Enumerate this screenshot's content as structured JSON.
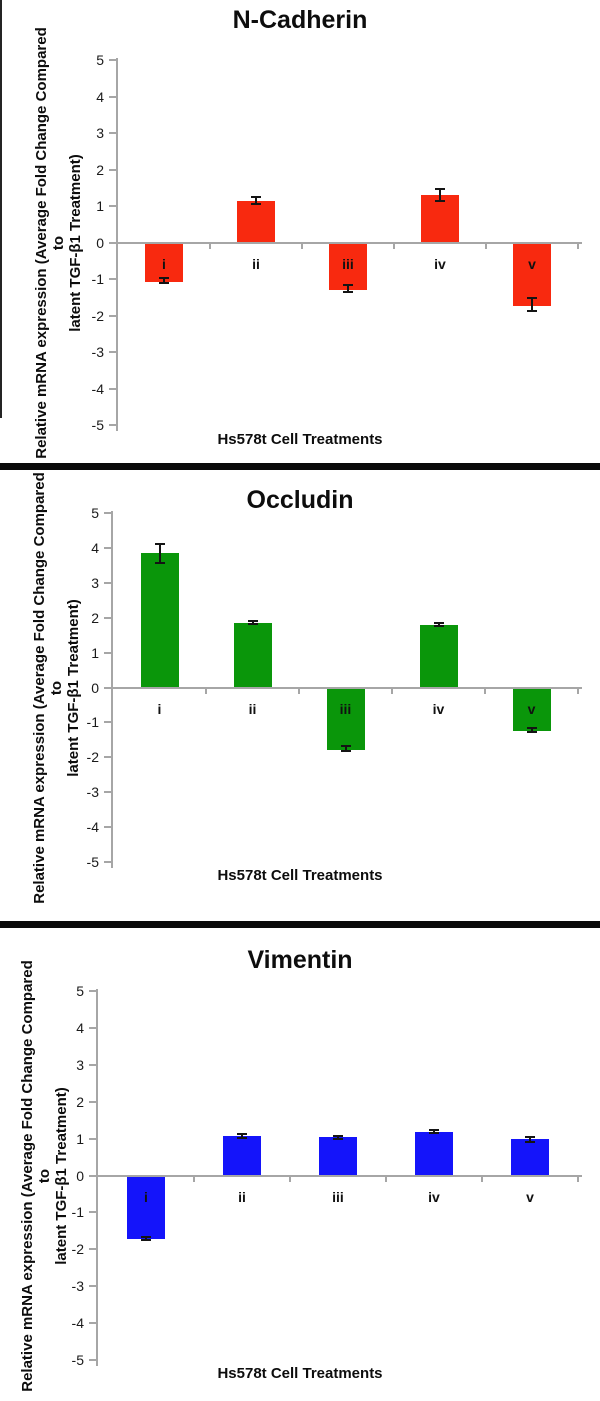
{
  "colors": {
    "axis": "#a6a6a6",
    "error_bar": "#141414",
    "separator": "#0a0a0a",
    "background": "#ffffff",
    "text": "#0d0d0d"
  },
  "chart_data": [
    {
      "type": "bar",
      "title": "N-Cadherin",
      "bar_color": "#f8290f",
      "categories": [
        "i",
        "ii",
        "iii",
        "iv",
        "v"
      ],
      "values": [
        -1.05,
        1.15,
        -1.27,
        1.3,
        -1.7
      ],
      "errors": [
        0.1,
        0.13,
        0.12,
        0.18,
        0.2
      ],
      "xlabel": "Hs578t Cell Treatments",
      "ylabel": "Relative mRNA expression (Average Fold Change  Compared to latent TGF-β1 Treatment)",
      "ylabel_lines": [
        "Relative mRNA expression (Average Fold Change  Compared to",
        "latent TGF-β1 Treatment)"
      ],
      "ylim": [
        -5,
        5
      ],
      "yticks": [
        5,
        4,
        3,
        2,
        1,
        0,
        -1,
        -2,
        -3,
        -4,
        -5
      ],
      "grid": false,
      "legend": "none"
    },
    {
      "type": "bar",
      "title": "Occludin",
      "bar_color": "#0a960a",
      "categories": [
        "i",
        "ii",
        "iii",
        "iv",
        "v"
      ],
      "values": [
        3.85,
        1.85,
        -1.75,
        1.8,
        -1.22
      ],
      "errors": [
        0.3,
        0.04,
        0.09,
        0.05,
        0.08
      ],
      "xlabel": "Hs578t Cell Treatments",
      "ylabel": "Relative mRNA expression (Average Fold Change  Compared to latent TGF-β1 Treatment)",
      "ylabel_lines": [
        "Relative mRNA expression (Average Fold Change  Compared to",
        "latent TGF-β1 Treatment)"
      ],
      "ylim": [
        -5,
        5
      ],
      "yticks": [
        5,
        4,
        3,
        2,
        1,
        0,
        -1,
        -2,
        -3,
        -4,
        -5
      ],
      "grid": false,
      "legend": "none"
    },
    {
      "type": "bar",
      "title": "Vimentin",
      "bar_color": "#1414fa",
      "categories": [
        "i",
        "ii",
        "iii",
        "iv",
        "v"
      ],
      "values": [
        -1.7,
        1.07,
        1.03,
        1.18,
        0.98
      ],
      "errors": [
        0.05,
        0.09,
        0.05,
        0.06,
        0.1
      ],
      "xlabel": "Hs578t Cell Treatments",
      "ylabel": "Relative mRNA expression (Average Fold Change  Compared to latent TGF-β1 Treatment)",
      "ylabel_lines": [
        "Relative mRNA expression (Average Fold Change  Compared to",
        "latent TGF-β1 Treatment)"
      ],
      "ylim": [
        -5,
        5
      ],
      "yticks": [
        5,
        4,
        3,
        2,
        1,
        0,
        -1,
        -2,
        -3,
        -4,
        -5
      ],
      "grid": false,
      "legend": "none"
    }
  ]
}
